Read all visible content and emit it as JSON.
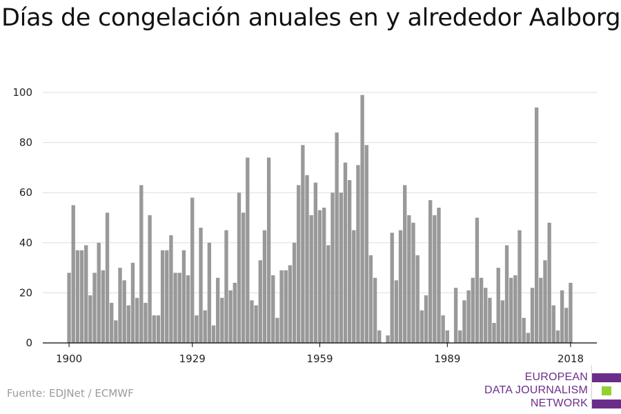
{
  "title": "Días de congelación anuales en y alrededor Aalborg",
  "source": "Fuente: EDJNet / ECMWF",
  "logo": {
    "lines": [
      "EUROPEAN",
      "DATA JOURNALISM",
      "NETWORK"
    ],
    "colors": {
      "purple": "#6b2d8a",
      "green": "#93d130"
    }
  },
  "colors": {
    "bar": "#999999",
    "grid": "#dddddd",
    "axis": "#000000"
  },
  "chart_data": {
    "type": "bar",
    "title": "Días de congelación anuales en y alrededor Aalborg",
    "xlabel": "",
    "ylabel": "",
    "ylim": [
      0,
      100
    ],
    "yticks": [
      0,
      20,
      40,
      60,
      80,
      100
    ],
    "xticks": [
      "1900",
      "1929",
      "1959",
      "1989",
      "2018"
    ],
    "grid": true,
    "x_start": 1900,
    "x_end": 2018,
    "values": [
      28,
      55,
      37,
      37,
      39,
      19,
      28,
      40,
      29,
      52,
      16,
      9,
      30,
      25,
      15,
      32,
      18,
      63,
      16,
      51,
      11,
      11,
      37,
      37,
      43,
      28,
      28,
      37,
      27,
      58,
      11,
      46,
      13,
      40,
      7,
      26,
      18,
      45,
      21,
      24,
      60,
      52,
      74,
      17,
      15,
      33,
      45,
      74,
      27,
      10,
      29,
      29,
      31,
      40,
      63,
      79,
      67,
      51,
      64,
      53,
      54,
      39,
      60,
      84,
      60,
      72,
      65,
      45,
      71,
      99,
      79,
      35,
      26,
      5,
      0,
      3,
      44,
      25,
      45,
      63,
      51,
      48,
      35,
      13,
      19,
      57,
      51,
      54,
      11,
      5,
      0,
      22,
      5,
      17,
      21,
      26,
      50,
      26,
      22,
      18,
      8,
      30,
      17,
      39,
      26,
      27,
      45,
      10,
      4,
      22,
      94,
      26,
      33,
      48,
      15,
      5,
      21,
      14,
      24
    ]
  }
}
